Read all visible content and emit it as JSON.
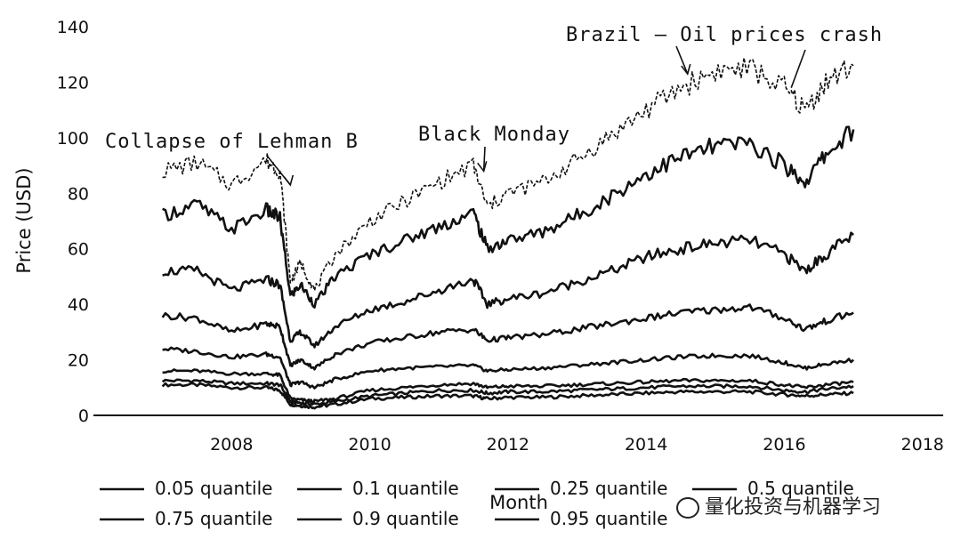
{
  "chart_data": {
    "type": "line",
    "title": "",
    "xlabel": "Month",
    "ylabel": "Price (USD)",
    "xlim": [
      2006.0,
      2018.3
    ],
    "ylim": [
      0,
      140
    ],
    "x_ticks": [
      2008,
      2010,
      2012,
      2014,
      2016,
      2018
    ],
    "y_ticks": [
      0,
      20,
      40,
      60,
      80,
      100,
      120,
      140
    ],
    "grid": false,
    "legend_position": "bottom",
    "x": [
      2007.0,
      2007.5,
      2008.0,
      2008.5,
      2008.7,
      2008.85,
      2009.0,
      2009.2,
      2009.5,
      2010.0,
      2010.5,
      2011.0,
      2011.5,
      2011.7,
      2012.0,
      2012.5,
      2013.0,
      2013.5,
      2014.0,
      2014.5,
      2015.0,
      2015.5,
      2016.0,
      2016.3,
      2016.6,
      2017.0
    ],
    "series": [
      {
        "name": "0.05 quantile",
        "values": [
          11,
          11,
          10,
          10,
          9,
          4,
          3.5,
          3,
          4,
          6,
          6.5,
          7,
          7,
          6,
          6.5,
          6.5,
          7,
          7.5,
          8,
          8.5,
          8.5,
          8.5,
          7.5,
          7,
          7.5,
          8
        ]
      },
      {
        "name": "0.1 quantile",
        "values": [
          12.5,
          12.5,
          11.5,
          11.5,
          11,
          5,
          4.5,
          4,
          5,
          7,
          8,
          9,
          9,
          8,
          8.5,
          8.5,
          9,
          9.5,
          10,
          10.5,
          10.5,
          10.5,
          9,
          8.5,
          9.5,
          10.5
        ]
      },
      {
        "name": "0.25 quantile",
        "values": [
          16,
          16,
          15,
          15,
          14.5,
          6,
          5.5,
          5,
          6,
          9,
          10,
          11,
          11.5,
          10,
          10.5,
          10.5,
          11,
          11.5,
          12,
          12.5,
          12.5,
          12.5,
          11,
          10,
          11,
          12
        ]
      },
      {
        "name": "0.5 quantile",
        "values": [
          24,
          23,
          21,
          22,
          21,
          11,
          12,
          10,
          13,
          16,
          17,
          17.5,
          18,
          16,
          16.5,
          17,
          18,
          19,
          20,
          21,
          21.5,
          21.5,
          19,
          17,
          18.5,
          20
        ]
      },
      {
        "name": "0.75 quantile",
        "values": [
          36,
          35,
          30,
          33,
          32,
          18,
          20,
          17,
          22,
          26,
          28,
          30,
          31,
          27,
          28,
          29,
          31,
          33,
          35,
          37,
          38,
          39,
          35,
          31,
          34,
          37
        ]
      },
      {
        "name": "0.9 quantile",
        "values": [
          52,
          52,
          45,
          49,
          47,
          27,
          30,
          25,
          32,
          38,
          41,
          45,
          49,
          40,
          42,
          44,
          48,
          52,
          57,
          60,
          62,
          63,
          58,
          52,
          58,
          65
        ]
      },
      {
        "name": "0.95 quantile",
        "values": [
          72,
          76,
          67,
          74,
          71,
          43,
          47,
          40,
          50,
          58,
          63,
          68,
          73,
          60,
          63,
          66,
          72,
          79,
          87,
          93,
          97,
          98,
          90,
          84,
          94,
          103
        ]
      },
      {
        "name": "",
        "values": [
          88,
          91,
          83,
          92,
          88,
          48,
          55,
          45,
          58,
          70,
          77,
          84,
          90,
          75,
          80,
          84,
          92,
          101,
          110,
          118,
          124,
          125,
          118,
          110,
          120,
          126
        ]
      }
    ],
    "annotations": [
      {
        "text": "Collapse of Lehman B",
        "x": 2008.85,
        "y": 83
      },
      {
        "text": "Black Monday",
        "x": 2011.65,
        "y": 88
      },
      {
        "text": "Brazil – Oil prices crash",
        "x": 2014.6,
        "y": 123
      }
    ]
  },
  "watermark": {
    "text": "量化投资与机器学习"
  }
}
